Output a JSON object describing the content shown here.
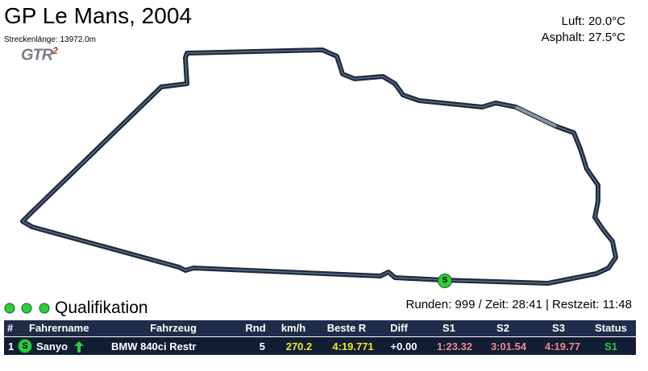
{
  "header": {
    "title": "GP Le Mans, 2004",
    "track_length": "Streckenlänge: 13972.0m",
    "logo": {
      "text": "GTR",
      "sup": "2"
    },
    "air": "Luft: 20.0°C",
    "asphalt": "Asphalt: 27.5°C"
  },
  "track": {
    "marker": "S"
  },
  "session": {
    "name": "Qualifikation",
    "status": "Runden: 999 / Zeit: 28:41 | Restzeit: 11:48"
  },
  "table": {
    "columns": [
      "#",
      "Fahrername",
      "Fahrzeug",
      "Rnd",
      "km/h",
      "Beste R",
      "Diff",
      "S1",
      "S2",
      "S3",
      "Status"
    ],
    "rows": [
      [
        "1",
        "Sanyo",
        "BMW 840ci Restr",
        "5",
        "270.2",
        "4:19.771",
        "+0.00",
        "1:23.32",
        "3:01.54",
        "4:19.77",
        "S1"
      ]
    ]
  }
}
